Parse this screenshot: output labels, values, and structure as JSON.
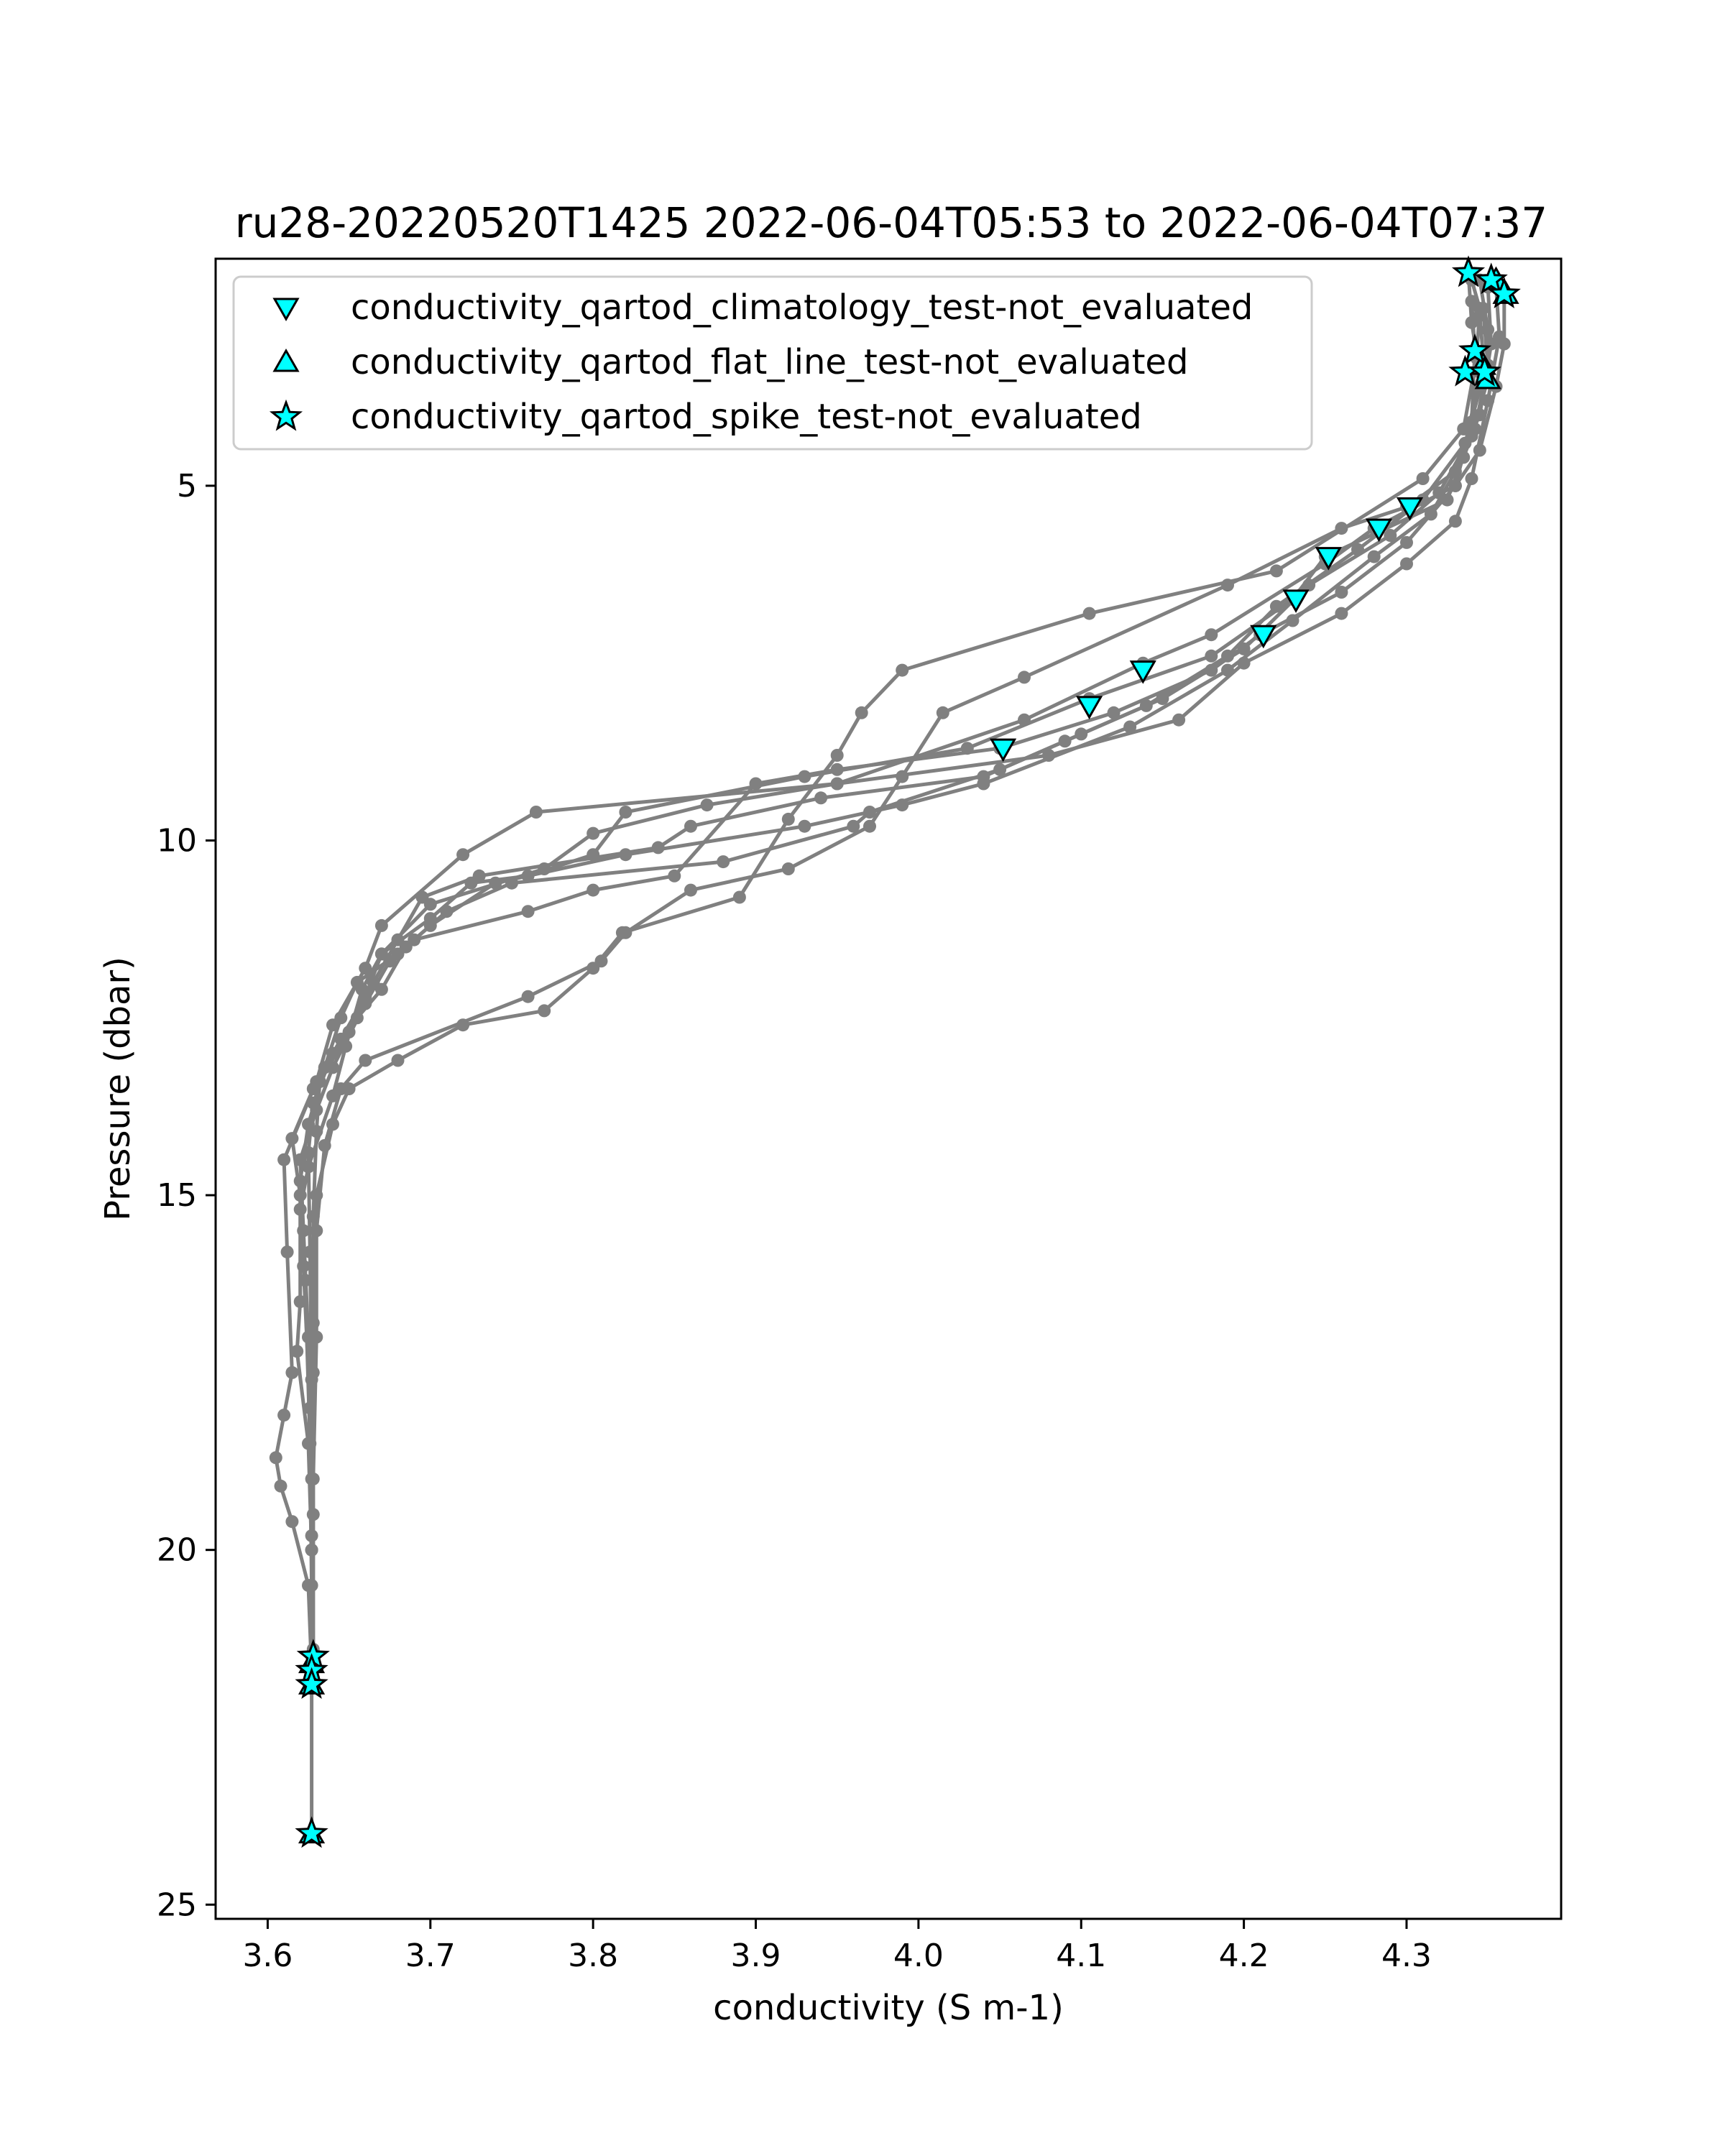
{
  "chart_data": {
    "type": "line",
    "title": "ru28-20220520T1425 2022-06-04T05:53 to 2022-06-04T07:37",
    "xlabel": "conductivity (S m-1)",
    "ylabel": "Pressure (dbar)",
    "xlim": [
      3.568,
      4.395
    ],
    "ylim": [
      25.2,
      1.8
    ],
    "y_inverted": true,
    "grid": false,
    "x_ticks": [
      3.6,
      3.7,
      3.8,
      3.9,
      4.0,
      4.1,
      4.2,
      4.3
    ],
    "x_tick_labels": [
      "3.6",
      "3.7",
      "3.8",
      "3.9",
      "4.0",
      "4.1",
      "4.2",
      "4.3"
    ],
    "y_ticks": [
      5,
      10,
      15,
      20,
      25
    ],
    "y_tick_labels": [
      "5",
      "10",
      "15",
      "20",
      "25"
    ],
    "line_color": "#808080",
    "marker_color": "#00ffff",
    "legend_position": "top-left",
    "profiles": [
      [
        [
          4.34,
          2.1
        ],
        [
          4.345,
          2.5
        ],
        [
          4.343,
          3.2
        ],
        [
          4.335,
          4.2
        ],
        [
          4.31,
          4.9
        ],
        [
          4.22,
          6.2
        ],
        [
          4.105,
          6.8
        ],
        [
          3.99,
          7.6
        ],
        [
          3.965,
          8.2
        ],
        [
          3.95,
          8.8
        ],
        [
          3.92,
          9.7
        ],
        [
          3.89,
          10.8
        ],
        [
          3.818,
          11.3
        ],
        [
          3.8,
          11.8
        ],
        [
          3.77,
          12.4
        ],
        [
          3.72,
          12.6
        ],
        [
          3.68,
          13.1
        ],
        [
          3.65,
          13.5
        ],
        [
          3.64,
          14.0
        ],
        [
          3.63,
          15.0
        ],
        [
          3.63,
          17.0
        ],
        [
          3.628,
          19.0
        ],
        [
          3.628,
          21.5
        ]
      ],
      [
        [
          4.35,
          2.2
        ],
        [
          4.352,
          3.0
        ],
        [
          4.345,
          4.0
        ],
        [
          4.33,
          4.8
        ],
        [
          4.3,
          5.3
        ],
        [
          4.26,
          5.6
        ],
        [
          4.19,
          6.4
        ],
        [
          4.065,
          7.7
        ],
        [
          4.015,
          8.2
        ],
        [
          3.99,
          9.1
        ],
        [
          3.97,
          9.8
        ],
        [
          3.92,
          10.4
        ],
        [
          3.86,
          10.7
        ],
        [
          3.82,
          11.3
        ],
        [
          3.805,
          11.7
        ],
        [
          3.76,
          12.2
        ],
        [
          3.66,
          13.1
        ],
        [
          3.645,
          13.5
        ],
        [
          3.635,
          14.3
        ],
        [
          3.63,
          15.5
        ],
        [
          3.628,
          17.5
        ],
        [
          3.627,
          20.0
        ],
        [
          3.627,
          21.9
        ]
      ],
      [
        [
          4.36,
          2.3
        ],
        [
          4.36,
          3.0
        ],
        [
          4.355,
          3.6
        ],
        [
          4.345,
          4.5
        ],
        [
          4.33,
          5.0
        ],
        [
          4.28,
          5.6
        ],
        [
          4.25,
          6.1
        ],
        [
          4.18,
          7.1
        ],
        [
          4.138,
          7.5
        ],
        [
          4.065,
          8.3
        ],
        [
          3.95,
          9.2
        ],
        [
          3.765,
          9.6
        ],
        [
          3.72,
          10.2
        ],
        [
          3.67,
          11.2
        ],
        [
          3.66,
          11.8
        ],
        [
          3.64,
          12.6
        ],
        [
          3.63,
          13.4
        ],
        [
          3.61,
          14.5
        ],
        [
          3.612,
          15.8
        ],
        [
          3.615,
          17.5
        ],
        [
          3.61,
          18.1
        ],
        [
          3.605,
          18.7
        ],
        [
          3.608,
          19.1
        ],
        [
          3.615,
          19.6
        ],
        [
          3.625,
          20.5
        ],
        [
          3.627,
          21.7
        ],
        [
          3.627,
          24.0
        ]
      ],
      [
        [
          4.345,
          2.1
        ],
        [
          4.35,
          2.8
        ],
        [
          4.35,
          3.5
        ],
        [
          4.34,
          4.3
        ],
        [
          4.325,
          5.2
        ],
        [
          4.25,
          6.0
        ],
        [
          4.23,
          6.6
        ],
        [
          4.18,
          7.4
        ],
        [
          4.105,
          8.0
        ],
        [
          4.03,
          8.7
        ],
        [
          3.93,
          9.1
        ],
        [
          3.82,
          9.6
        ],
        [
          3.8,
          10.2
        ],
        [
          3.76,
          10.5
        ],
        [
          3.725,
          10.6
        ],
        [
          3.7,
          11.1
        ],
        [
          3.67,
          11.6
        ],
        [
          3.66,
          12.2
        ],
        [
          3.645,
          12.8
        ],
        [
          3.628,
          13.5
        ],
        [
          3.615,
          14.2
        ],
        [
          3.62,
          15.0
        ],
        [
          3.62,
          16.5
        ],
        [
          3.618,
          17.2
        ],
        [
          3.625,
          18.5
        ],
        [
          3.627,
          20.0
        ],
        [
          3.627,
          21.6
        ]
      ],
      [
        [
          4.34,
          2.4
        ],
        [
          4.342,
          3.1
        ],
        [
          4.34,
          4.1
        ],
        [
          4.33,
          5.0
        ],
        [
          4.3,
          5.8
        ],
        [
          4.26,
          6.5
        ],
        [
          4.21,
          7.1
        ],
        [
          4.18,
          7.6
        ],
        [
          4.12,
          8.2
        ],
        [
          4.05,
          8.7
        ],
        [
          3.95,
          9.0
        ],
        [
          3.9,
          9.2
        ],
        [
          3.85,
          10.5
        ],
        [
          3.8,
          10.7
        ],
        [
          3.76,
          11.0
        ],
        [
          3.69,
          11.4
        ],
        [
          3.675,
          11.7
        ],
        [
          3.66,
          12.3
        ],
        [
          3.64,
          13.2
        ],
        [
          3.63,
          13.8
        ],
        [
          3.62,
          14.5
        ],
        [
          3.622,
          15.5
        ],
        [
          3.625,
          17.0
        ],
        [
          3.627,
          19.0
        ],
        [
          3.628,
          21.4
        ]
      ],
      [
        [
          4.338,
          2.0
        ],
        [
          4.34,
          2.7
        ],
        [
          4.345,
          3.4
        ],
        [
          4.335,
          4.6
        ],
        [
          4.315,
          5.4
        ],
        [
          4.28,
          6.0
        ],
        [
          4.23,
          6.9
        ],
        [
          4.19,
          7.6
        ],
        [
          4.13,
          8.4
        ],
        [
          4.04,
          9.2
        ],
        [
          3.99,
          9.5
        ],
        [
          3.93,
          9.8
        ],
        [
          3.82,
          10.2
        ],
        [
          3.74,
          10.6
        ],
        [
          3.7,
          11.2
        ],
        [
          3.68,
          11.6
        ],
        [
          3.655,
          12.0
        ],
        [
          3.645,
          12.5
        ],
        [
          3.635,
          13.2
        ],
        [
          3.625,
          14.0
        ],
        [
          3.62,
          14.8
        ],
        [
          3.622,
          16.0
        ],
        [
          3.626,
          18.0
        ],
        [
          3.627,
          20.0
        ],
        [
          3.627,
          21.8
        ]
      ],
      [
        [
          4.355,
          2.2
        ],
        [
          4.357,
          2.9
        ],
        [
          4.35,
          3.8
        ],
        [
          4.34,
          4.9
        ],
        [
          4.33,
          5.5
        ],
        [
          4.3,
          6.1
        ],
        [
          4.26,
          6.8
        ],
        [
          4.2,
          7.5
        ],
        [
          4.16,
          8.3
        ],
        [
          4.08,
          8.8
        ],
        [
          3.95,
          9.2
        ],
        [
          3.87,
          9.5
        ],
        [
          3.8,
          9.9
        ],
        [
          3.77,
          10.4
        ],
        [
          3.7,
          10.9
        ],
        [
          3.67,
          11.6
        ],
        [
          3.658,
          12.1
        ],
        [
          3.648,
          12.9
        ],
        [
          3.64,
          13.6
        ],
        [
          3.625,
          14.6
        ],
        [
          3.62,
          15.2
        ],
        [
          3.623,
          16.2
        ],
        [
          3.626,
          18.5
        ],
        [
          3.627,
          20.5
        ],
        [
          3.627,
          21.5
        ]
      ],
      [
        [
          4.347,
          2.5
        ],
        [
          4.35,
          3.3
        ],
        [
          4.342,
          4.2
        ],
        [
          4.32,
          5.1
        ],
        [
          4.29,
          5.7
        ],
        [
          4.24,
          6.4
        ],
        [
          4.2,
          7.3
        ],
        [
          4.15,
          8.0
        ],
        [
          4.09,
          8.6
        ],
        [
          4.04,
          9.1
        ],
        [
          3.94,
          9.4
        ],
        [
          3.86,
          9.8
        ],
        [
          3.84,
          10.1
        ],
        [
          3.73,
          10.5
        ],
        [
          3.695,
          10.8
        ],
        [
          3.68,
          11.4
        ],
        [
          3.665,
          12.0
        ],
        [
          3.65,
          12.7
        ],
        [
          3.632,
          13.4
        ],
        [
          3.63,
          14.1
        ],
        [
          3.628,
          15.3
        ],
        [
          3.628,
          16.8
        ],
        [
          3.628,
          19.5
        ],
        [
          3.628,
          21.7
        ]
      ],
      [
        [
          4.345,
          2.6
        ],
        [
          4.348,
          3.4
        ],
        [
          4.336,
          4.4
        ],
        [
          4.31,
          5.2
        ],
        [
          4.27,
          5.9
        ],
        [
          4.22,
          6.7
        ],
        [
          4.19,
          7.4
        ],
        [
          4.14,
          8.1
        ],
        [
          4.1,
          8.5
        ],
        [
          4.05,
          9.0
        ],
        [
          3.97,
          9.6
        ],
        [
          3.96,
          9.8
        ],
        [
          3.88,
          10.3
        ],
        [
          3.75,
          10.6
        ],
        [
          3.71,
          11.0
        ],
        [
          3.685,
          11.5
        ],
        [
          3.67,
          12.1
        ],
        [
          3.655,
          12.5
        ],
        [
          3.64,
          13.0
        ],
        [
          3.628,
          13.7
        ],
        [
          3.625,
          14.4
        ],
        [
          3.626,
          15.8
        ],
        [
          3.627,
          17.6
        ],
        [
          3.627,
          19.8
        ],
        [
          3.627,
          21.6
        ]
      ]
    ],
    "series": [
      {
        "name": "conductivity_qartod_climatology_test-not_evaluated",
        "marker": "triangle-down",
        "x": [
          4.302,
          4.283,
          4.252,
          4.232,
          4.212,
          4.138,
          4.105,
          4.052
        ],
        "y": [
          5.3,
          5.6,
          6.0,
          6.6,
          7.1,
          7.6,
          8.1,
          8.7
        ]
      },
      {
        "name": "conductivity_qartod_flat_line_test-not_evaluated",
        "marker": "triangle-up",
        "x": [
          4.355,
          4.361,
          4.347,
          4.35
        ],
        "y": [
          2.1,
          2.3,
          3.3,
          3.5
        ],
        "x_extra": [
          3.627,
          3.627,
          3.627
        ],
        "y_extra": [
          21.6,
          21.9,
          24.0
        ]
      },
      {
        "name": "conductivity_qartod_spike_test-not_evaluated",
        "marker": "star",
        "x": [
          4.338,
          4.352,
          4.36,
          4.342,
          4.336,
          4.348,
          3.628,
          3.627,
          3.627,
          3.627
        ],
        "y": [
          2.0,
          2.1,
          2.3,
          3.1,
          3.4,
          3.4,
          21.5,
          21.7,
          21.9,
          24.0
        ]
      }
    ]
  }
}
